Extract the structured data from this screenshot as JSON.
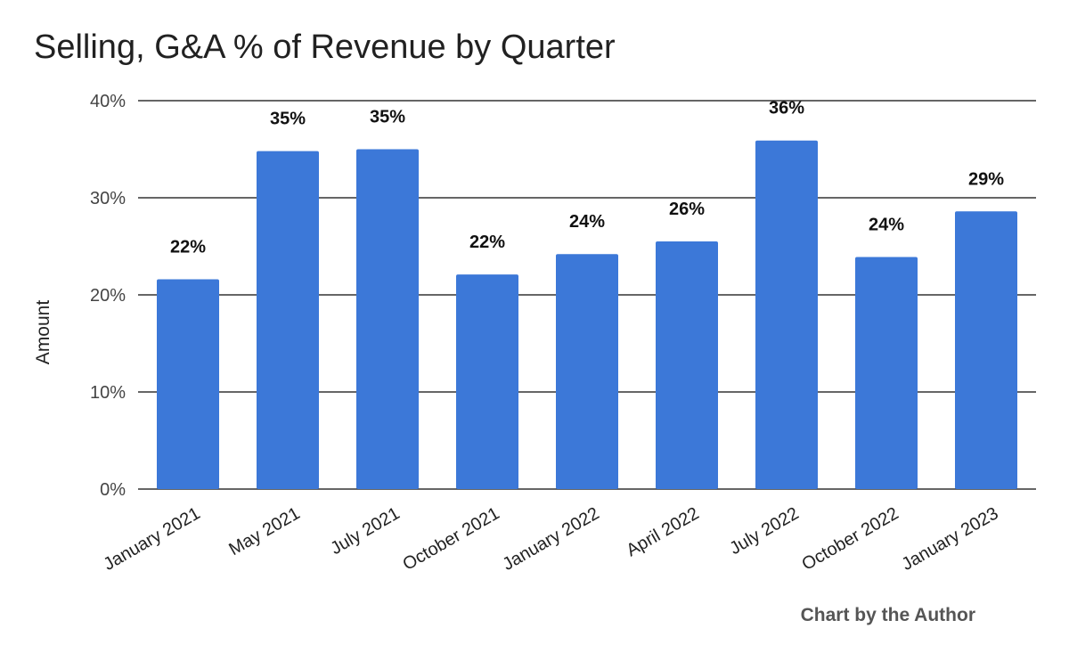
{
  "chart_data": {
    "type": "bar",
    "title": "Selling, G&A % of Revenue by Quarter",
    "ylabel": "Amount",
    "xlabel": "",
    "categories": [
      "January 2021",
      "May 2021",
      "July 2021",
      "October 2021",
      "January 2022",
      "April 2022",
      "July 2022",
      "October 2022",
      "January 2023"
    ],
    "values": [
      21.6,
      34.8,
      35.0,
      22.1,
      24.2,
      25.5,
      35.9,
      23.9,
      28.6
    ],
    "data_labels": [
      "22%",
      "35%",
      "35%",
      "22%",
      "24%",
      "26%",
      "36%",
      "24%",
      "29%"
    ],
    "ylim": [
      0,
      40
    ],
    "yticks": [
      0,
      10,
      20,
      30,
      40
    ],
    "ytick_labels": [
      "0%",
      "10%",
      "20%",
      "30%",
      "40%"
    ],
    "bar_color": "#3c78d8",
    "grid": true,
    "legend": "none"
  },
  "credit": "Chart by the Author"
}
